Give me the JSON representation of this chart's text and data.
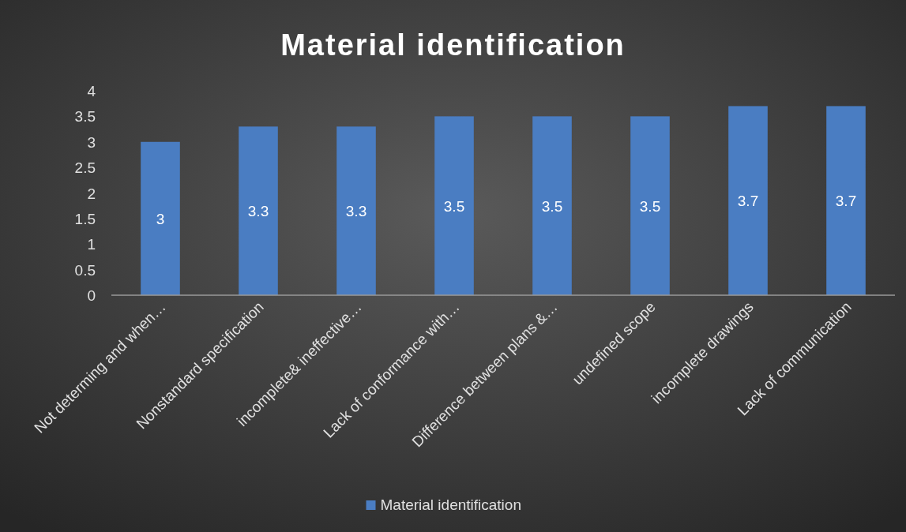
{
  "chart_data": {
    "type": "bar",
    "title": "Material identification",
    "categories": [
      "Not determing and when…",
      "Nonstandard specification",
      "incomplete& ineffective…",
      "Lack of conformance with…",
      "Difference between plans &…",
      "undefined scope",
      "incomplete drawings",
      "Lack of communication"
    ],
    "series": [
      {
        "name": "Material identification",
        "color": "#4a7dc2",
        "values": [
          3,
          3.3,
          3.3,
          3.5,
          3.5,
          3.5,
          3.7,
          3.7
        ]
      }
    ],
    "ylim": [
      0,
      4
    ],
    "yticks": [
      0,
      0.5,
      1,
      1.5,
      2,
      2.5,
      3,
      3.5,
      4
    ],
    "data_labels": true,
    "legend": "bottom",
    "grid": false
  }
}
